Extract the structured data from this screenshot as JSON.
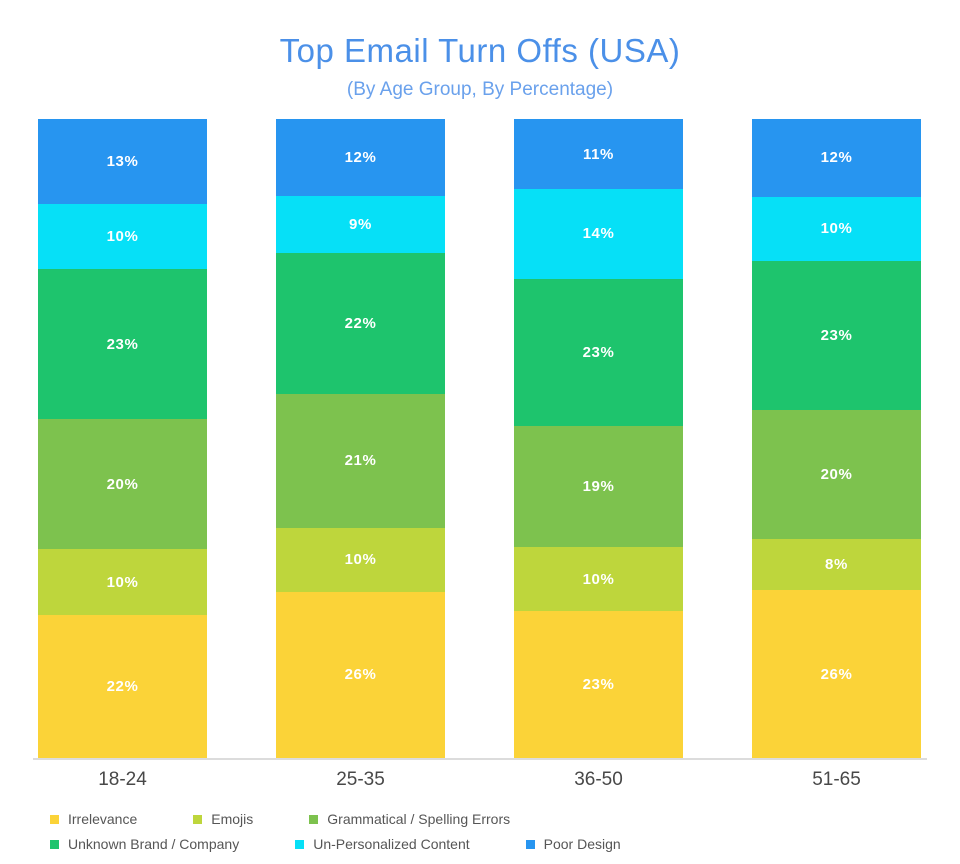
{
  "title": "Top Email Turn Offs (USA)",
  "subtitle": "(By Age Group, By Percentage)",
  "colors": {
    "title": "#4B90E8",
    "subtitle": "#6AA1EC",
    "axis_line": "#DCDCDC",
    "axis_label": "#484848",
    "legend_text": "#565656",
    "value_label": "#FFFFFF"
  },
  "chart_data": {
    "type": "bar",
    "stacked": true,
    "unit": "%",
    "title": "Top Email Turn Offs (USA)",
    "subtitle": "(By Age Group, By Percentage)",
    "categories": [
      "18-24",
      "25-35",
      "36-50",
      "51-65"
    ],
    "series": [
      {
        "name": "Irrelevance",
        "color": "#FBD338",
        "values": [
          22,
          26,
          23,
          26
        ]
      },
      {
        "name": "Emojis",
        "color": "#BED63C",
        "values": [
          10,
          10,
          10,
          8
        ]
      },
      {
        "name": "Grammatical / Spelling Errors",
        "color": "#7DC24E",
        "values": [
          20,
          21,
          19,
          20
        ]
      },
      {
        "name": "Unknown Brand / Company",
        "color": "#1EC46D",
        "values": [
          23,
          22,
          23,
          23
        ]
      },
      {
        "name": "Un-Personalized Content",
        "color": "#06E0F7",
        "values": [
          10,
          9,
          14,
          10
        ]
      },
      {
        "name": "Poor Design",
        "color": "#2795F0",
        "values": [
          13,
          12,
          11,
          12
        ]
      }
    ],
    "stack_order_bottom_to_top": [
      "Irrelevance",
      "Emojis",
      "Grammatical / Spelling Errors",
      "Unknown Brand / Company",
      "Un-Personalized Content",
      "Poor Design"
    ],
    "data_labels": "value_percent",
    "legend_position": "bottom-left",
    "grid": false,
    "y_axis_shown": false
  },
  "legend": {
    "rows": [
      [
        0,
        1,
        2
      ],
      [
        3,
        4,
        5
      ]
    ]
  }
}
